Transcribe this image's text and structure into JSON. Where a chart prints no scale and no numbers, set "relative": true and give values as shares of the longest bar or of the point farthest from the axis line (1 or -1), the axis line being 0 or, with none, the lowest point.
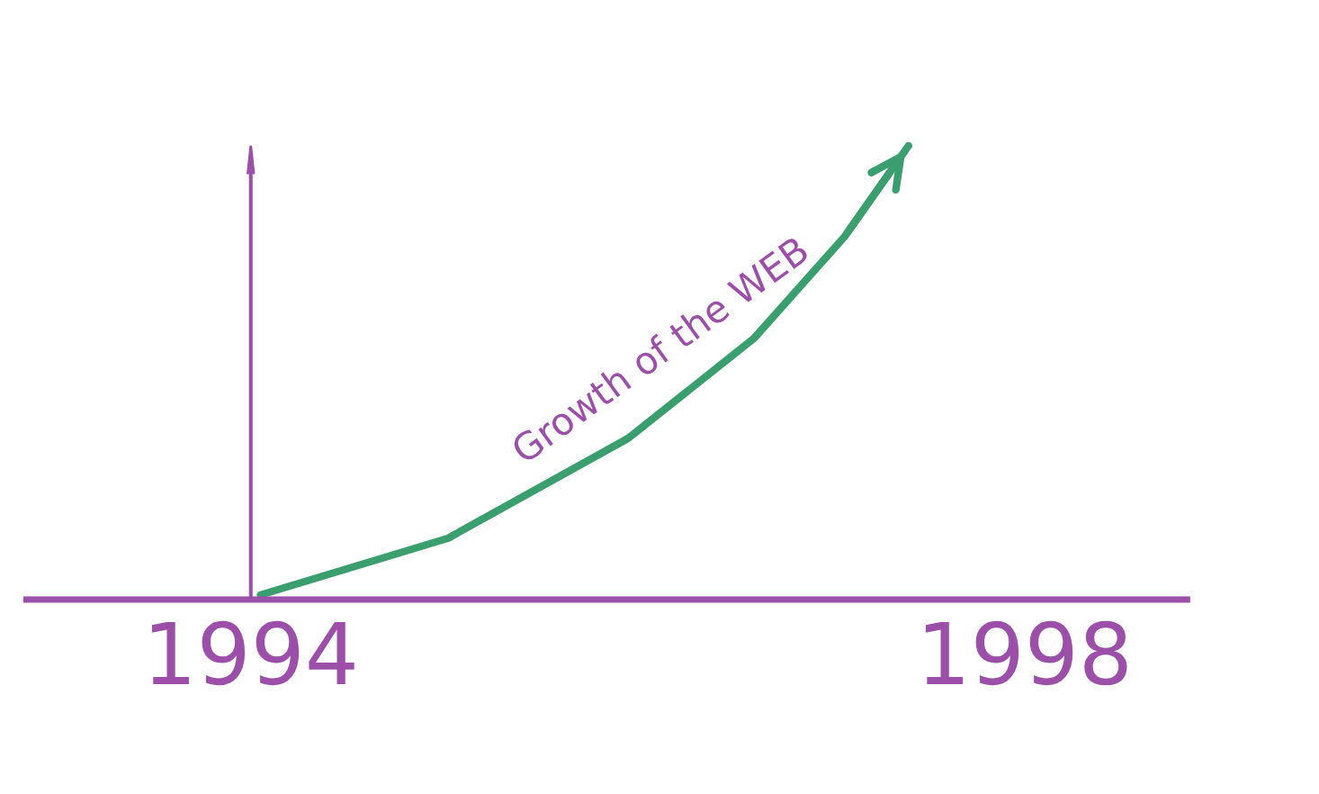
{
  "chart_data": {
    "type": "line",
    "relative": true,
    "x": [
      1994.05,
      1995.02,
      1995.95,
      1996.6,
      1997.07,
      1997.4
    ],
    "series": [
      {
        "name": "Growth of the WEB",
        "color": "#3a9e6e",
        "values": [
          0.01,
          0.135,
          0.355,
          0.575,
          0.8,
          1
        ]
      }
    ],
    "xlim": [
      1992.84,
      1998.84
    ],
    "xticks": [
      1994,
      1998
    ],
    "tick_labels": "x",
    "grid": false,
    "legend": false,
    "marker": "none",
    "line_style": "solid"
  }
}
